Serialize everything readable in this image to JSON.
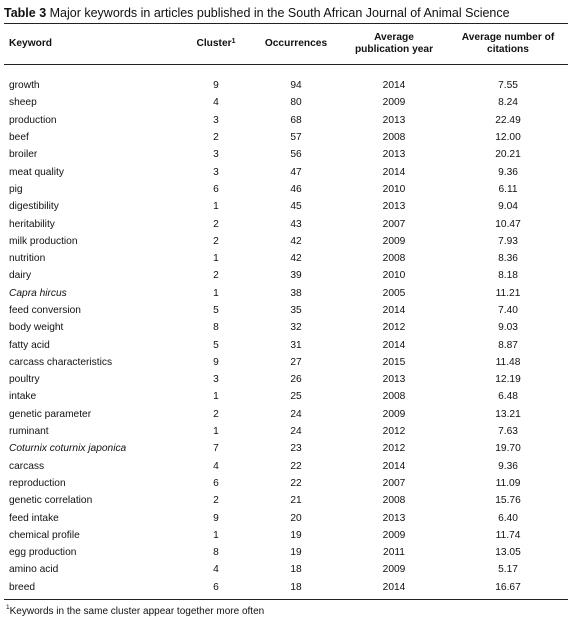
{
  "table": {
    "caption_label": "Table 3",
    "caption_text": " Major keywords in articles published in the South African Journal of Animal Science",
    "headers": {
      "keyword": "Keyword",
      "cluster": "Cluster",
      "cluster_sup": "1",
      "occurrences": "Occurrences",
      "avg_year_line1": "Average",
      "avg_year_line2": "publication year",
      "avg_cit_line1": "Average number of",
      "avg_cit_line2": "citations"
    },
    "rows": [
      {
        "keyword": "growth",
        "cluster": "9",
        "occurrences": "94",
        "year": "2014",
        "citations": "7.55",
        "italic": false
      },
      {
        "keyword": "sheep",
        "cluster": "4",
        "occurrences": "80",
        "year": "2009",
        "citations": "8.24",
        "italic": false
      },
      {
        "keyword": "production",
        "cluster": "3",
        "occurrences": "68",
        "year": "2013",
        "citations": "22.49",
        "italic": false
      },
      {
        "keyword": "beef",
        "cluster": "2",
        "occurrences": "57",
        "year": "2008",
        "citations": "12.00",
        "italic": false
      },
      {
        "keyword": "broiler",
        "cluster": "3",
        "occurrences": "56",
        "year": "2013",
        "citations": "20.21",
        "italic": false
      },
      {
        "keyword": "meat quality",
        "cluster": "3",
        "occurrences": "47",
        "year": "2014",
        "citations": "9.36",
        "italic": false
      },
      {
        "keyword": "pig",
        "cluster": "6",
        "occurrences": "46",
        "year": "2010",
        "citations": "6.11",
        "italic": false
      },
      {
        "keyword": "digestibility",
        "cluster": "1",
        "occurrences": "45",
        "year": "2013",
        "citations": "9.04",
        "italic": false
      },
      {
        "keyword": "heritability",
        "cluster": "2",
        "occurrences": "43",
        "year": "2007",
        "citations": "10.47",
        "italic": false
      },
      {
        "keyword": "milk production",
        "cluster": "2",
        "occurrences": "42",
        "year": "2009",
        "citations": "7.93",
        "italic": false
      },
      {
        "keyword": "nutrition",
        "cluster": "1",
        "occurrences": "42",
        "year": "2008",
        "citations": "8.36",
        "italic": false
      },
      {
        "keyword": "dairy",
        "cluster": "2",
        "occurrences": "39",
        "year": "2010",
        "citations": "8.18",
        "italic": false
      },
      {
        "keyword": "Capra hircus",
        "cluster": "1",
        "occurrences": "38",
        "year": "2005",
        "citations": "11.21",
        "italic": true
      },
      {
        "keyword": "feed conversion",
        "cluster": "5",
        "occurrences": "35",
        "year": "2014",
        "citations": "7.40",
        "italic": false
      },
      {
        "keyword": "body weight",
        "cluster": "8",
        "occurrences": "32",
        "year": "2012",
        "citations": "9.03",
        "italic": false
      },
      {
        "keyword": "fatty acid",
        "cluster": "5",
        "occurrences": "31",
        "year": "2014",
        "citations": "8.87",
        "italic": false
      },
      {
        "keyword": "carcass characteristics",
        "cluster": "9",
        "occurrences": "27",
        "year": "2015",
        "citations": "11.48",
        "italic": false
      },
      {
        "keyword": "poultry",
        "cluster": "3",
        "occurrences": "26",
        "year": "2013",
        "citations": "12.19",
        "italic": false
      },
      {
        "keyword": "intake",
        "cluster": "1",
        "occurrences": "25",
        "year": "2008",
        "citations": "6.48",
        "italic": false
      },
      {
        "keyword": "genetic parameter",
        "cluster": "2",
        "occurrences": "24",
        "year": "2009",
        "citations": "13.21",
        "italic": false
      },
      {
        "keyword": "ruminant",
        "cluster": "1",
        "occurrences": "24",
        "year": "2012",
        "citations": "7.63",
        "italic": false
      },
      {
        "keyword": "Coturnix coturnix japonica",
        "cluster": "7",
        "occurrences": "23",
        "year": "2012",
        "citations": "19.70",
        "italic": true
      },
      {
        "keyword": "carcass",
        "cluster": "4",
        "occurrences": "22",
        "year": "2014",
        "citations": "9.36",
        "italic": false
      },
      {
        "keyword": "reproduction",
        "cluster": "6",
        "occurrences": "22",
        "year": "2007",
        "citations": "11.09",
        "italic": false
      },
      {
        "keyword": "genetic correlation",
        "cluster": "2",
        "occurrences": "21",
        "year": "2008",
        "citations": "15.76",
        "italic": false
      },
      {
        "keyword": "feed intake",
        "cluster": "9",
        "occurrences": "20",
        "year": "2013",
        "citations": "6.40",
        "italic": false
      },
      {
        "keyword": "chemical profile",
        "cluster": "1",
        "occurrences": "19",
        "year": "2009",
        "citations": "11.74",
        "italic": false
      },
      {
        "keyword": "egg production",
        "cluster": "8",
        "occurrences": "19",
        "year": "2011",
        "citations": "13.05",
        "italic": false
      },
      {
        "keyword": "amino acid",
        "cluster": "4",
        "occurrences": "18",
        "year": "2009",
        "citations": "5.17",
        "italic": false
      },
      {
        "keyword": "breed",
        "cluster": "6",
        "occurrences": "18",
        "year": "2014",
        "citations": "16.67",
        "italic": false
      }
    ],
    "footnote_sup": "1",
    "footnote_text": "Keywords in the same cluster appear together more often"
  }
}
